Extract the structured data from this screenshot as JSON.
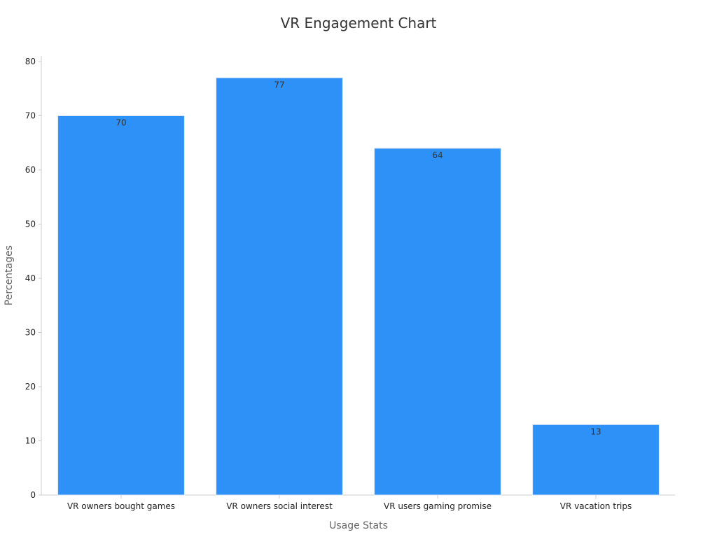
{
  "chart_data": {
    "type": "bar",
    "title": "VR Engagement Chart",
    "xlabel": "Usage Stats",
    "ylabel": "Percentages",
    "categories": [
      "VR owners bought games",
      "VR owners social interest",
      "VR users gaming promise",
      "VR vacation trips"
    ],
    "values": [
      70,
      77,
      64,
      13
    ],
    "data_labels": [
      "70",
      "77",
      "64",
      "13"
    ],
    "ylim": [
      0,
      80
    ],
    "yticks": [
      0,
      10,
      20,
      30,
      40,
      50,
      60,
      70,
      80
    ],
    "ytick_labels": [
      "0",
      "10",
      "20",
      "30",
      "40",
      "50",
      "60",
      "70",
      "80"
    ],
    "grid": false,
    "legend": "none"
  },
  "colors": {
    "bar": "#2e91f8",
    "bar_edge": "#dbe7f3",
    "axis": "#cccccc",
    "tick_text": "#222222",
    "title_text": "#333333",
    "label_text": "#666666",
    "data_label_text": "#333333"
  }
}
